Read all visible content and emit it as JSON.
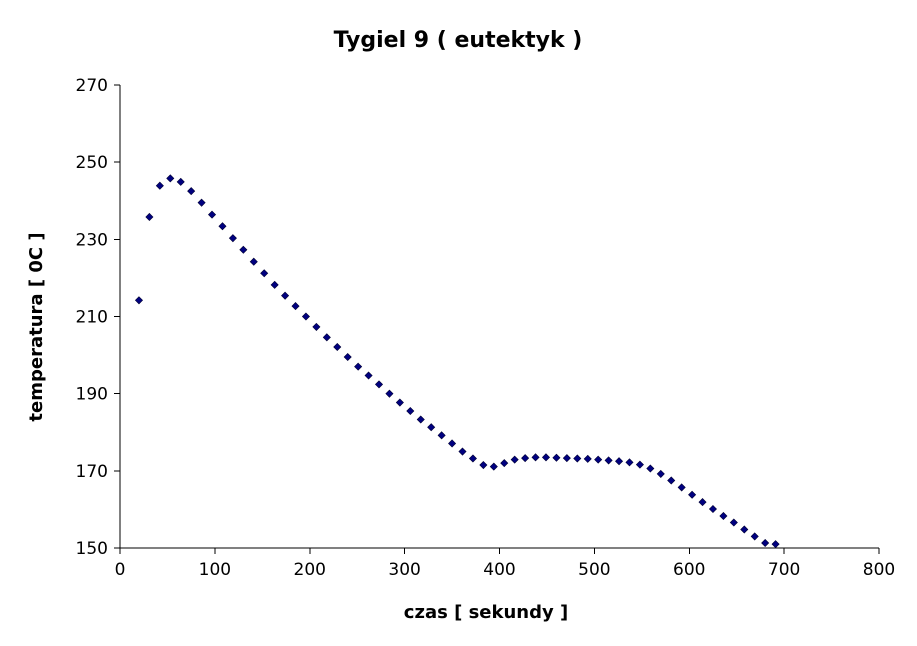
{
  "chart_data": {
    "type": "scatter",
    "title": "Tygiel 9 ( eutektyk )",
    "xlabel": "czas [ sekundy ]",
    "ylabel": "temperatura [ 0C ]",
    "xlim": [
      0,
      800
    ],
    "ylim": [
      150,
      270
    ],
    "xticks": [
      0,
      100,
      200,
      300,
      400,
      500,
      600,
      700,
      800
    ],
    "yticks": [
      150,
      170,
      190,
      210,
      230,
      250,
      270
    ],
    "grid": false,
    "legend": "none",
    "marker_color": "#000080",
    "series": [
      {
        "x": [
          20,
          31,
          42,
          53,
          64,
          75,
          86,
          97,
          108,
          119,
          130,
          141,
          152,
          163,
          174,
          185,
          196,
          207,
          218,
          229,
          240,
          251,
          262,
          273,
          284,
          295,
          306,
          317,
          328,
          339,
          350,
          361,
          372,
          383,
          394,
          405,
          416,
          427,
          438,
          449,
          460,
          471,
          482,
          493,
          504,
          515,
          526,
          537,
          548,
          559,
          570,
          581,
          592,
          603,
          614,
          625,
          636,
          647,
          658,
          669,
          680,
          691
        ],
        "y": [
          214.2,
          235.8,
          243.9,
          245.8,
          244.9,
          242.5,
          239.5,
          236.4,
          233.4,
          230.3,
          227.3,
          224.2,
          221.2,
          218.2,
          215.4,
          212.7,
          210.0,
          207.3,
          204.6,
          202.1,
          199.5,
          197.0,
          194.7,
          192.4,
          190.0,
          187.7,
          185.5,
          183.3,
          181.3,
          179.2,
          177.1,
          175.0,
          173.2,
          171.5,
          171.1,
          172.0,
          172.9,
          173.3,
          173.5,
          173.5,
          173.4,
          173.3,
          173.2,
          173.1,
          172.9,
          172.7,
          172.5,
          172.2,
          171.6,
          170.6,
          169.2,
          167.5,
          165.7,
          163.8,
          161.9,
          160.1,
          158.3,
          156.6,
          154.8,
          153.0,
          151.3,
          151.0
        ]
      }
    ]
  }
}
